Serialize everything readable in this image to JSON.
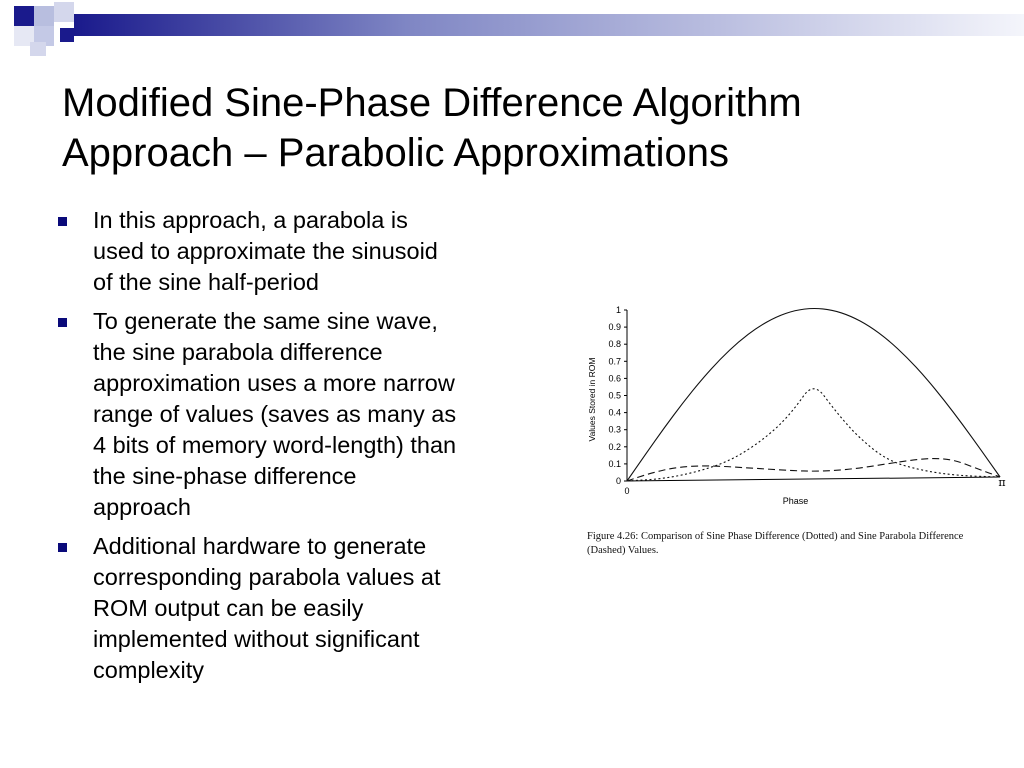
{
  "slide": {
    "title_lines": [
      "Modified Sine-Phase Difference Algorithm",
      "Approach – Parabolic Approximations"
    ],
    "bullets": [
      {
        "lines": [
          "In this approach, a parabola is",
          "used to approximate the sinusoid",
          "of the sine half-period"
        ]
      },
      {
        "lines": [
          "To generate the same sine wave,",
          "the sine parabola difference",
          "approximation uses a more narrow",
          "range of values (saves as many as",
          "4 bits of memory word-length) than",
          "the sine-phase difference",
          "approach"
        ]
      },
      {
        "lines": [
          "Additional hardware to generate",
          "corresponding parabola values at",
          "ROM output can be easily",
          "implemented without significant",
          "complexity"
        ]
      }
    ],
    "bullet_color": "#0a0a7a",
    "decoration_color": "#1a1a8c"
  },
  "figure": {
    "caption_lines": [
      "Figure 4.26: Comparison of Sine Phase Difference (Dotted) and Sine Parabola Difference",
      "(Dashed) Values."
    ]
  },
  "chart_data": {
    "type": "line",
    "xlabel": "Phase",
    "ylabel": "Values Stored in ROM",
    "xlim": [
      0,
      3.14159
    ],
    "ylim": [
      0,
      1
    ],
    "x_tick_labels": [
      "0",
      "π"
    ],
    "y_tick_labels": [
      "0",
      "0.1",
      "0.2",
      "0.3",
      "0.4",
      "0.5",
      "0.6",
      "0.7",
      "0.8",
      "0.9",
      "1"
    ],
    "grid": false,
    "series": [
      {
        "style": "solid",
        "x": [
          0,
          0.157,
          0.314,
          0.471,
          0.628,
          0.785,
          0.942,
          1.1,
          1.257,
          1.414,
          1.571,
          1.728,
          1.885,
          2.042,
          2.199,
          2.356,
          2.513,
          2.67,
          2.827,
          2.985,
          3.142
        ],
        "values": [
          0,
          0.156,
          0.309,
          0.454,
          0.588,
          0.707,
          0.809,
          0.891,
          0.951,
          0.988,
          1,
          0.988,
          0.951,
          0.891,
          0.809,
          0.707,
          0.588,
          0.454,
          0.309,
          0.156,
          0
        ]
      },
      {
        "style": "dotted",
        "x": [
          0,
          0.3,
          0.6,
          0.9,
          1.2,
          1.4,
          1.571,
          1.75,
          1.95,
          2.2,
          2.5,
          2.8,
          3.142
        ],
        "values": [
          0,
          0.01,
          0.05,
          0.12,
          0.26,
          0.4,
          0.57,
          0.4,
          0.24,
          0.1,
          0.04,
          0.01,
          0
        ]
      },
      {
        "style": "dashed",
        "x": [
          0,
          0.2,
          0.4,
          0.6,
          0.8,
          1.0,
          1.2,
          1.4,
          1.571,
          1.75,
          1.95,
          2.15,
          2.35,
          2.55,
          2.75,
          2.95,
          3.142
        ],
        "values": [
          0,
          0.045,
          0.075,
          0.085,
          0.08,
          0.07,
          0.06,
          0.05,
          0.045,
          0.048,
          0.06,
          0.08,
          0.1,
          0.115,
          0.105,
          0.05,
          0
        ]
      }
    ]
  }
}
